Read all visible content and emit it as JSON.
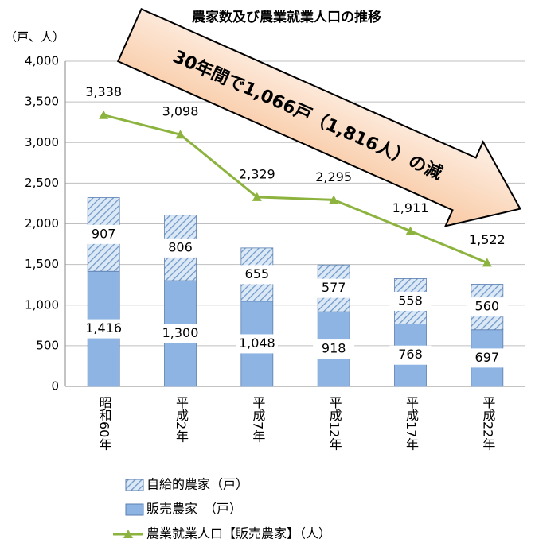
{
  "chart_data": {
    "type": "bar",
    "title": "農家数及び農業就業人口の推移",
    "y_label": "（戸、人）",
    "annotation": "30年間で1,066戸（1,816人）の減",
    "categories": [
      "昭和60年",
      "平成2年",
      "平成7年",
      "平成12年",
      "平成17年",
      "平成22年"
    ],
    "stacked": true,
    "series": [
      {
        "name": "販売農家　（戸）",
        "color": "#8db4e2",
        "kind": "bar",
        "values": [
          1416,
          1300,
          1048,
          918,
          768,
          697
        ],
        "value_labels": [
          "1,416",
          "1,300",
          "1,048",
          "918",
          "768",
          "697"
        ]
      },
      {
        "name": "自給的農家（戸）",
        "color": "#8db4e2",
        "kind": "bar",
        "hatch": true,
        "values": [
          907,
          806,
          655,
          577,
          558,
          560
        ]
      },
      {
        "name": "農業就業人口【販売農家】（人）",
        "color": "#8db33f",
        "kind": "line",
        "values": [
          3338,
          3098,
          2329,
          2295,
          1911,
          1522
        ],
        "value_labels": [
          "3,338",
          "3,098",
          "2,329",
          "2,295",
          "1,911",
          "1,522"
        ]
      }
    ],
    "ylim": [
      0,
      4000
    ],
    "yticks": [
      0,
      500,
      {
        "value": 1000,
        "label": "1,000"
      },
      {
        "value": 1500,
        "label": "1,500"
      },
      {
        "value": 2000,
        "label": "2,000"
      },
      {
        "value": 2500,
        "label": "2,500"
      },
      {
        "value": 3000,
        "label": "3,000"
      },
      {
        "value": 3500,
        "label": "3,500"
      },
      {
        "value": 4000,
        "label": "4,000"
      }
    ],
    "grid": true
  }
}
